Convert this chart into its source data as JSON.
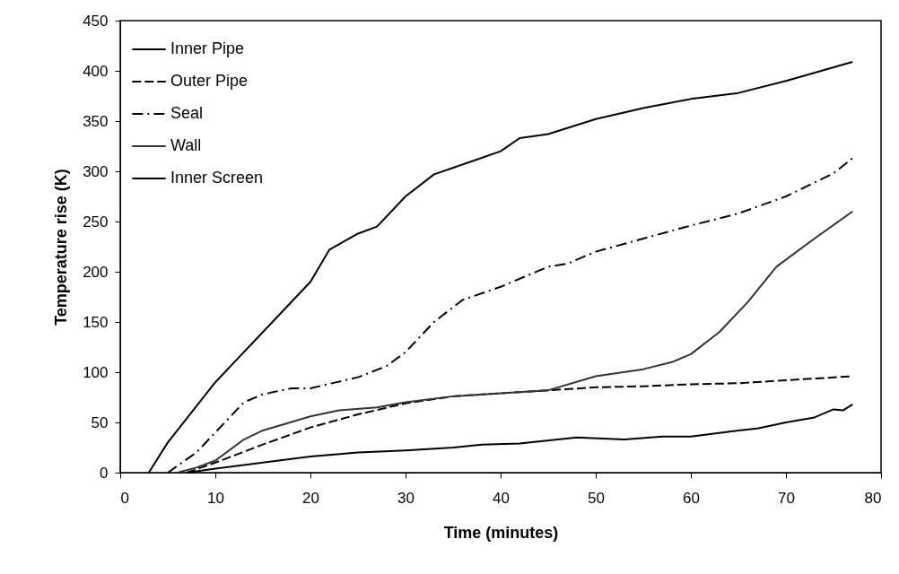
{
  "chart_data": {
    "type": "line",
    "xlabel": "Time (minutes)",
    "ylabel": "Temperature rise (K)",
    "xlim": [
      0,
      80
    ],
    "xticks": [
      0,
      10,
      20,
      30,
      40,
      50,
      60,
      70,
      80
    ],
    "ylim": [
      0,
      450
    ],
    "yticks": [
      0,
      50,
      100,
      150,
      200,
      250,
      300,
      350,
      400,
      450
    ],
    "grid": false,
    "legend": "top left",
    "series": [
      {
        "name": "Inner Pipe",
        "color": "#000000",
        "line_style": "solid",
        "x": [
          3,
          5,
          10,
          15,
          20,
          22,
          25,
          27,
          30,
          33,
          37,
          40,
          42,
          45,
          50,
          55,
          60,
          65,
          70,
          77
        ],
        "values": [
          0,
          30,
          90,
          140,
          190,
          222,
          238,
          245,
          275,
          297,
          310,
          320,
          333,
          337,
          352,
          363,
          372,
          378,
          390,
          409
        ]
      },
      {
        "name": "Outer Pipe",
        "color": "#000000",
        "line_style": "dashed",
        "x": [
          7,
          10,
          15,
          20,
          25,
          30,
          35,
          40,
          45,
          50,
          55,
          60,
          65,
          70,
          77
        ],
        "values": [
          0,
          10,
          28,
          45,
          58,
          69,
          76,
          79,
          82,
          85,
          86,
          88,
          89,
          92,
          96
        ]
      },
      {
        "name": "Seal",
        "color": "#000000",
        "line_style": "dashdot",
        "x": [
          5,
          8,
          10,
          13,
          15,
          18,
          20,
          25,
          28,
          30,
          33,
          36,
          40,
          45,
          47,
          50,
          55,
          60,
          65,
          70,
          75,
          77
        ],
        "values": [
          0,
          20,
          40,
          70,
          78,
          84,
          84,
          95,
          106,
          120,
          150,
          172,
          185,
          205,
          208,
          220,
          233,
          246,
          258,
          275,
          298,
          313
        ]
      },
      {
        "name": "Wall",
        "color": "#333333",
        "line_style": "solid",
        "x": [
          6,
          8,
          10,
          13,
          15,
          20,
          23,
          27,
          30,
          35,
          40,
          45,
          50,
          55,
          58,
          60,
          63,
          66,
          69,
          73,
          77
        ],
        "values": [
          0,
          5,
          12,
          33,
          42,
          56,
          62,
          65,
          70,
          76,
          79,
          82,
          96,
          103,
          110,
          118,
          140,
          170,
          205,
          233,
          260
        ]
      },
      {
        "name": "Inner Screen",
        "color": "#000000",
        "line_style": "solid",
        "x": [
          7,
          10,
          15,
          20,
          25,
          30,
          35,
          38,
          42,
          48,
          53,
          57,
          60,
          65,
          67,
          70,
          73,
          75,
          76,
          77
        ],
        "values": [
          0,
          4,
          10,
          16,
          20,
          22,
          25,
          28,
          29,
          35,
          33,
          36,
          36,
          42,
          44,
          50,
          55,
          63,
          62,
          68
        ]
      }
    ]
  }
}
